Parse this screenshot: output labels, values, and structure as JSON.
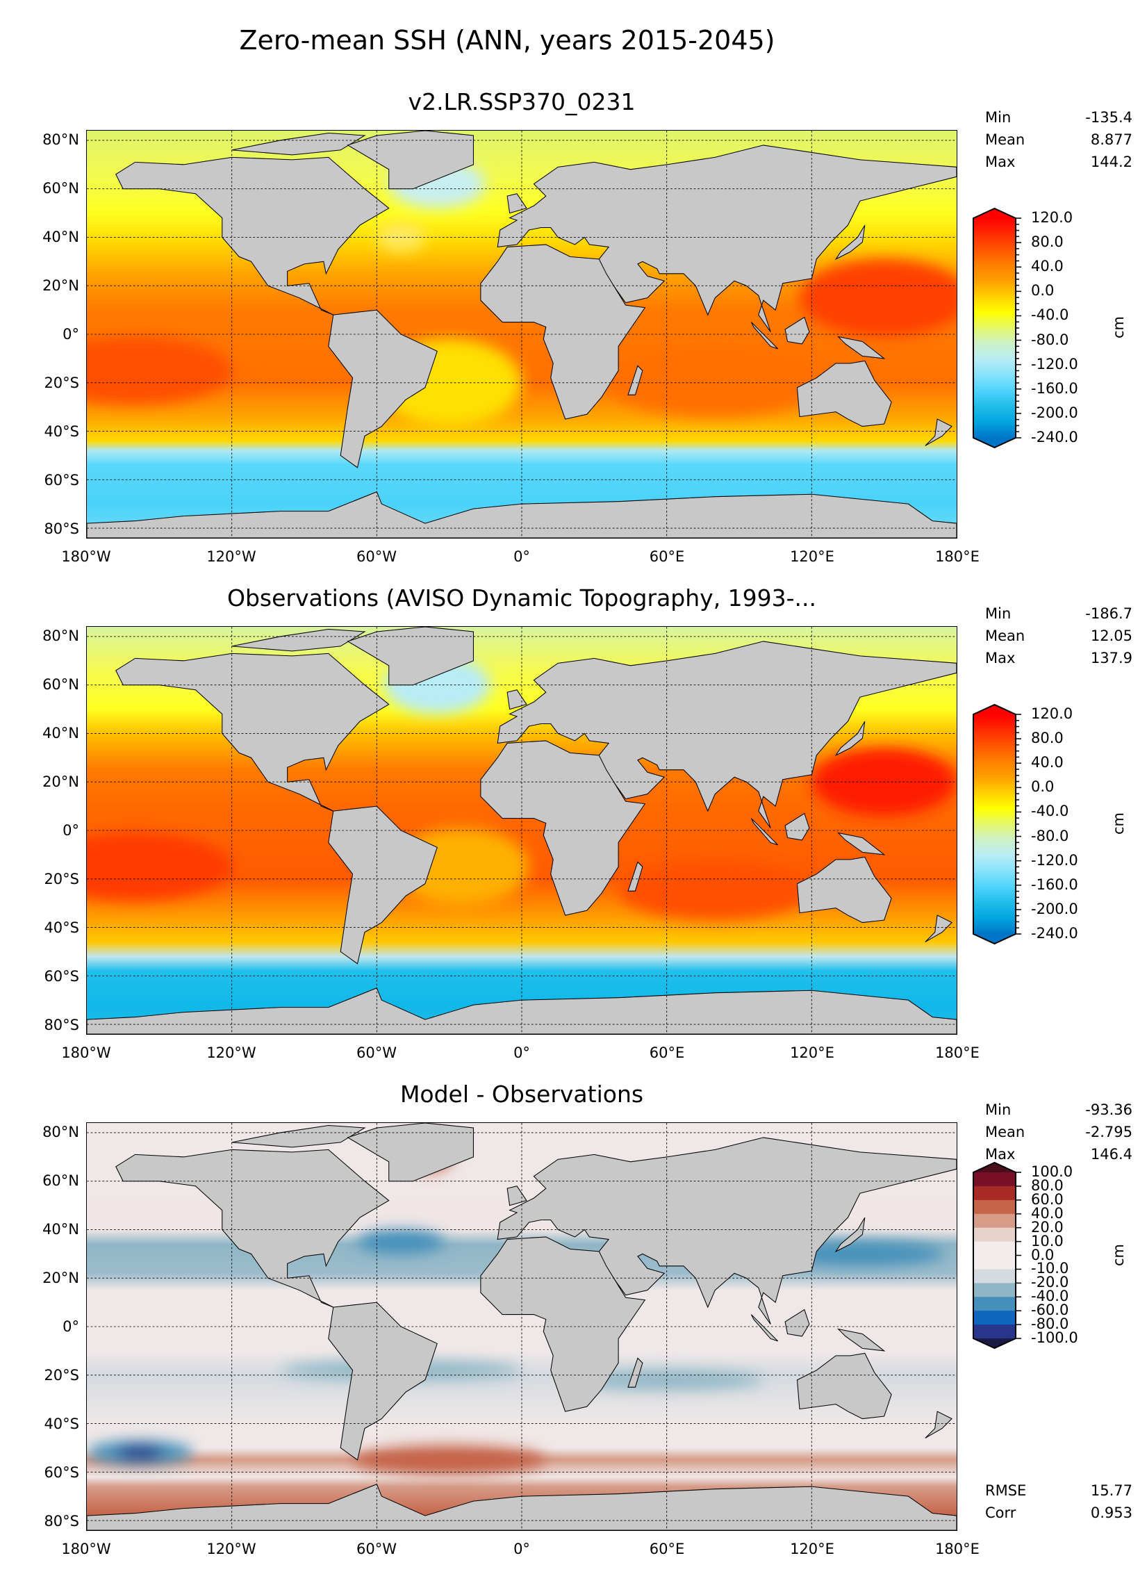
{
  "title": "Zero-mean SSH (ANN, years 2015-2045)",
  "lat_ticks": [
    "80°N",
    "60°N",
    "40°N",
    "20°N",
    "0°",
    "20°S",
    "40°S",
    "60°S",
    "80°S"
  ],
  "lon_ticks": [
    "180°W",
    "120°W",
    "60°W",
    "0°",
    "60°E",
    "120°E",
    "180°E"
  ],
  "colors": {
    "land": "#c8c8c8",
    "grid": "#000000"
  },
  "chart_data": [
    {
      "type": "heatmap",
      "subtitle": "v2.LR.SSP370_0231",
      "units": "cm",
      "stats": [
        {
          "label": "Min",
          "value": "-135.4"
        },
        {
          "label": "Mean",
          "value": "8.877"
        },
        {
          "label": "Max",
          "value": "144.2"
        }
      ],
      "colorbar": {
        "ticks": [
          "120.0",
          "80.0",
          "40.0",
          "0.0",
          "-40.0",
          "-80.0",
          "-120.0",
          "-160.0",
          "-200.0",
          "-240.0"
        ],
        "colors": [
          "#ff0000",
          "#ff2a00",
          "#ff5500",
          "#ff8000",
          "#ffa000",
          "#ffd000",
          "#ffff00",
          "#e4f86a",
          "#cdf2c8",
          "#b8ecf6",
          "#86e2fb",
          "#4fd3fb",
          "#20bde9",
          "#00a5df",
          "#0075c8"
        ]
      },
      "lon_range": [
        -180,
        180
      ],
      "lat_range": [
        -84,
        84
      ]
    },
    {
      "type": "heatmap",
      "subtitle": "Observations (AVISO Dynamic Topography, 1993-...",
      "units": "cm",
      "stats": [
        {
          "label": "Min",
          "value": "-186.7"
        },
        {
          "label": "Mean",
          "value": "12.05"
        },
        {
          "label": "Max",
          "value": "137.9"
        }
      ],
      "colorbar": {
        "ticks": [
          "120.0",
          "80.0",
          "40.0",
          "0.0",
          "-40.0",
          "-80.0",
          "-120.0",
          "-160.0",
          "-200.0",
          "-240.0"
        ],
        "colors": [
          "#ff0000",
          "#ff2a00",
          "#ff5500",
          "#ff8000",
          "#ffa000",
          "#ffd000",
          "#ffff00",
          "#e4f86a",
          "#cdf2c8",
          "#b8ecf6",
          "#86e2fb",
          "#4fd3fb",
          "#20bde9",
          "#00a5df",
          "#0075c8"
        ]
      },
      "lon_range": [
        -180,
        180
      ],
      "lat_range": [
        -84,
        84
      ]
    },
    {
      "type": "heatmap",
      "subtitle": "Model - Observations",
      "units": "cm",
      "stats": [
        {
          "label": "Min",
          "value": "-93.36"
        },
        {
          "label": "Mean",
          "value": "-2.795"
        },
        {
          "label": "Max",
          "value": "146.4"
        }
      ],
      "extra_stats": [
        {
          "label": "RMSE",
          "value": "15.77"
        },
        {
          "label": "Corr",
          "value": "0.953"
        }
      ],
      "colorbar": {
        "ticks": [
          "100.0",
          "80.0",
          "60.0",
          "40.0",
          "20.0",
          "10.0",
          "0.0",
          "-10.0",
          "-20.0",
          "-40.0",
          "-60.0",
          "-80.0",
          "-100.0"
        ],
        "colors": [
          "#4a0e1c",
          "#7a1028",
          "#a82a24",
          "#c56448",
          "#d69c88",
          "#e8d2cc",
          "#f2ecec",
          "#f2ecec",
          "#d4dbe0",
          "#8fb6c6",
          "#4490ba",
          "#0e66bf",
          "#27368b",
          "#1a1a44"
        ]
      },
      "lon_range": [
        -180,
        180
      ],
      "lat_range": [
        -84,
        84
      ]
    }
  ]
}
